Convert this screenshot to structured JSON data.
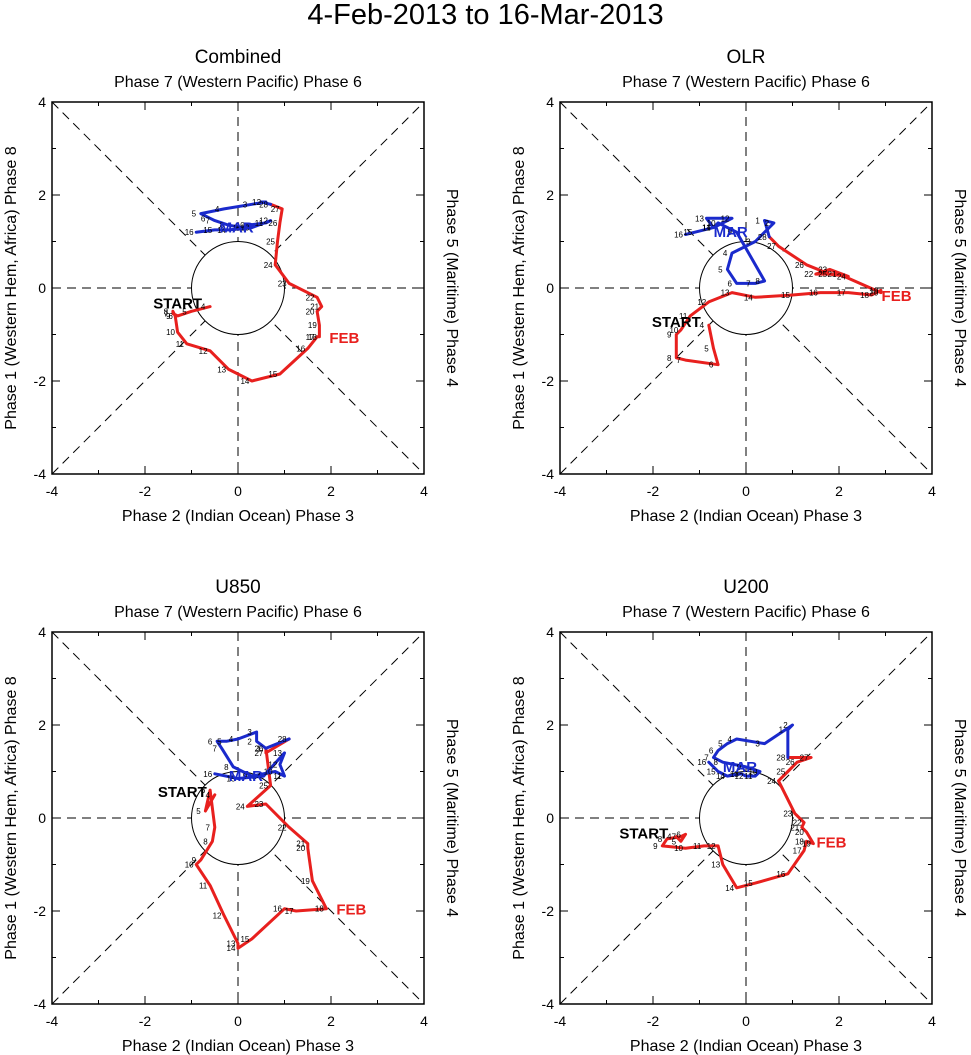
{
  "title": "4-Feb-2013 to 16-Mar-2013",
  "colors": {
    "feb": "#e8201e",
    "mar": "#1a2acc",
    "start": "#000000"
  },
  "panel_labels": {
    "top": "Phase 7 (Western Pacific) Phase 6",
    "bottom": "Phase 2 (Indian Ocean) Phase 3",
    "left": "Phase 1 (Western Hem, Africa) Phase 8",
    "right": "Phase 5 (Maritime) Phase 4",
    "start": "START",
    "feb": "FEB",
    "mar": "MAR"
  },
  "chart_data": [
    {
      "type": "line",
      "title": "Combined",
      "xlim": [
        -4,
        4
      ],
      "ylim": [
        -4,
        4
      ],
      "xticks": [
        "-4",
        "-2",
        "0",
        "2",
        "4"
      ],
      "yticks": [
        "-4",
        "-2",
        "0",
        "2",
        "4"
      ],
      "series": [
        {
          "name": "FEB",
          "days": [
            "4",
            "5",
            "6",
            "7",
            "8",
            "9",
            "10",
            "11",
            "12",
            "13",
            "14",
            "15",
            "16",
            "17",
            "18",
            "19",
            "20",
            "21",
            "22",
            "23",
            "24",
            "25",
            "26",
            "27",
            "28"
          ],
          "x": [
            -0.6,
            -1.0,
            -1.3,
            -1.4,
            -1.4,
            -1.35,
            -1.3,
            -1.1,
            -0.6,
            -0.2,
            0.3,
            0.9,
            1.5,
            1.7,
            1.75,
            1.75,
            1.7,
            1.8,
            1.7,
            1.1,
            0.8,
            0.85,
            0.9,
            0.95,
            0.7
          ],
          "y": [
            -0.4,
            -0.5,
            -0.6,
            -0.55,
            -0.5,
            -0.6,
            -0.95,
            -1.2,
            -1.35,
            -1.75,
            -2.0,
            -1.85,
            -1.3,
            -1.05,
            -1.05,
            -0.8,
            -0.5,
            -0.4,
            -0.2,
            0.1,
            0.5,
            1.0,
            1.4,
            1.7,
            1.8
          ]
        },
        {
          "name": "MAR",
          "days": [
            "1",
            "2",
            "3",
            "4",
            "5",
            "6",
            "7",
            "8",
            "9",
            "10",
            "11",
            "12",
            "13",
            "14",
            "15",
            "16"
          ],
          "x": [
            0.5,
            0.6,
            0.3,
            -0.3,
            -0.8,
            -0.6,
            -0.5,
            -0.2,
            0.1,
            0.2,
            0.6,
            0.7,
            0.3,
            -0.2,
            -0.5,
            -0.9
          ],
          "y": [
            1.85,
            1.85,
            1.8,
            1.7,
            1.6,
            1.5,
            1.45,
            1.35,
            1.3,
            1.35,
            1.4,
            1.45,
            1.3,
            1.25,
            1.25,
            1.2
          ]
        }
      ]
    },
    {
      "type": "line",
      "title": "OLR",
      "xlim": [
        -4,
        4
      ],
      "ylim": [
        -4,
        4
      ],
      "xticks": [
        "-4",
        "-2",
        "0",
        "2",
        "4"
      ],
      "yticks": [
        "-4",
        "-2",
        "0",
        "2",
        "4"
      ],
      "series": [
        {
          "name": "FEB",
          "days": [
            "4",
            "5",
            "6",
            "7",
            "8",
            "9",
            "10",
            "11",
            "12",
            "13",
            "14",
            "15",
            "16",
            "17",
            "18",
            "19",
            "20",
            "21",
            "22",
            "23",
            "24",
            "25",
            "26",
            "27",
            "28"
          ],
          "x": [
            -0.8,
            -0.7,
            -0.6,
            -1.3,
            -1.5,
            -1.5,
            -1.4,
            -1.2,
            -0.8,
            -0.3,
            0.2,
            1.0,
            1.6,
            2.2,
            2.7,
            2.9,
            2.9,
            2.0,
            1.5,
            1.8,
            2.2,
            1.8,
            1.3,
            0.7,
            0.5
          ],
          "y": [
            -0.8,
            -1.3,
            -1.65,
            -1.55,
            -1.5,
            -1.0,
            -0.9,
            -0.6,
            -0.3,
            -0.1,
            -0.2,
            -0.15,
            -0.1,
            -0.1,
            -0.15,
            -0.05,
            -0.1,
            0.3,
            0.3,
            0.4,
            0.25,
            0.3,
            0.5,
            0.9,
            1.1
          ]
        },
        {
          "name": "MAR",
          "days": [
            "1",
            "2",
            "3",
            "4",
            "5",
            "6",
            "7",
            "8",
            "9",
            "10",
            "11",
            "12",
            "13",
            "14",
            "15",
            "16"
          ],
          "x": [
            0.4,
            0.6,
            0.2,
            -0.3,
            -0.4,
            -0.2,
            0.2,
            0.4,
            -0.2,
            -0.6,
            -0.7,
            -0.3,
            -0.85,
            -0.7,
            -1.1,
            -1.3
          ],
          "y": [
            1.45,
            1.4,
            1.0,
            0.75,
            0.4,
            0.1,
            0.1,
            0.15,
            1.2,
            1.4,
            1.3,
            1.5,
            1.5,
            1.3,
            1.2,
            1.15
          ]
        }
      ]
    },
    {
      "type": "line",
      "title": "U850",
      "xlim": [
        -4,
        4
      ],
      "ylim": [
        -4,
        4
      ],
      "xticks": [
        "-4",
        "-2",
        "0",
        "2",
        "4"
      ],
      "yticks": [
        "-4",
        "-2",
        "0",
        "2",
        "4"
      ],
      "series": [
        {
          "name": "FEB",
          "days": [
            "4",
            "5",
            "6",
            "7",
            "8",
            "9",
            "10",
            "11",
            "12",
            "13",
            "14",
            "15",
            "16",
            "17",
            "18",
            "19",
            "20",
            "21",
            "22",
            "23",
            "24",
            "25",
            "26",
            "27",
            "28"
          ],
          "x": [
            -0.5,
            -0.7,
            -0.6,
            -0.5,
            -0.55,
            -0.8,
            -0.9,
            -0.6,
            -0.3,
            0.0,
            0.0,
            0.3,
            1.0,
            1.25,
            1.9,
            1.6,
            1.5,
            1.5,
            1.1,
            0.6,
            0.2,
            0.7,
            0.6,
            0.6,
            1.1
          ],
          "y": [
            0.5,
            0.15,
            0.6,
            -0.2,
            -0.5,
            -0.9,
            -1.0,
            -1.45,
            -2.1,
            -2.7,
            -2.8,
            -2.6,
            -1.95,
            -2.0,
            -1.95,
            -1.35,
            -0.65,
            -0.55,
            -0.2,
            0.3,
            0.25,
            0.7,
            1.5,
            1.4,
            1.7
          ]
        },
        {
          "name": "MAR",
          "days": [
            "1",
            "2",
            "3",
            "4",
            "5",
            "6",
            "7",
            "8",
            "9",
            "10",
            "11",
            "12",
            "13",
            "14",
            "15",
            "16"
          ],
          "x": [
            0.6,
            0.4,
            0.4,
            0.0,
            -0.25,
            -0.45,
            -0.35,
            -0.1,
            0.3,
            0.8,
            1.0,
            0.9,
            1.0,
            0.55,
            0.0,
            -0.5
          ],
          "y": [
            1.5,
            1.65,
            1.85,
            1.7,
            1.65,
            1.65,
            1.5,
            1.1,
            0.9,
            1.0,
            0.9,
            1.15,
            1.4,
            0.9,
            0.85,
            0.95
          ]
        }
      ]
    },
    {
      "type": "line",
      "title": "U200",
      "xlim": [
        -4,
        4
      ],
      "ylim": [
        -4,
        4
      ],
      "xticks": [
        "-4",
        "-2",
        "0",
        "2",
        "4"
      ],
      "yticks": [
        "-4",
        "-2",
        "0",
        "2",
        "4"
      ],
      "series": [
        {
          "name": "FEB",
          "days": [
            "4",
            "5",
            "6",
            "7",
            "8",
            "9",
            "10",
            "11",
            "12",
            "13",
            "14",
            "15",
            "16",
            "17",
            "18",
            "19",
            "20",
            "21",
            "22",
            "23",
            "24",
            "25",
            "26",
            "27",
            "28"
          ],
          "x": [
            -1.5,
            -1.4,
            -1.3,
            -1.4,
            -1.7,
            -1.8,
            -1.3,
            -0.9,
            -0.6,
            -0.5,
            -0.2,
            0.2,
            0.9,
            1.25,
            1.3,
            1.45,
            1.3,
            1.2,
            1.25,
            1.05,
            0.7,
            0.9,
            1.1,
            1.4,
            0.9
          ],
          "y": [
            -0.4,
            -0.5,
            -0.35,
            -0.4,
            -0.45,
            -0.6,
            -0.65,
            -0.6,
            -0.6,
            -1.0,
            -1.5,
            -1.4,
            -1.2,
            -0.7,
            -0.5,
            -0.55,
            -0.3,
            -0.2,
            -0.1,
            0.1,
            0.8,
            1.0,
            1.2,
            1.3,
            1.3
          ]
        },
        {
          "name": "MAR",
          "days": [
            "1",
            "2",
            "3",
            "4",
            "5",
            "6",
            "7",
            "8",
            "9",
            "10",
            "11",
            "12",
            "13",
            "14",
            "15",
            "16"
          ],
          "x": [
            0.9,
            1.0,
            0.4,
            -0.2,
            -0.4,
            -0.6,
            -0.7,
            -0.5,
            0.0,
            0.3,
            0.2,
            0.0,
            -0.1,
            -0.4,
            -0.6,
            -0.8
          ],
          "y": [
            1.9,
            2.0,
            1.6,
            1.7,
            1.6,
            1.45,
            1.3,
            1.2,
            1.1,
            1.0,
            0.9,
            0.9,
            0.95,
            0.9,
            1.0,
            1.2
          ]
        }
      ]
    }
  ]
}
